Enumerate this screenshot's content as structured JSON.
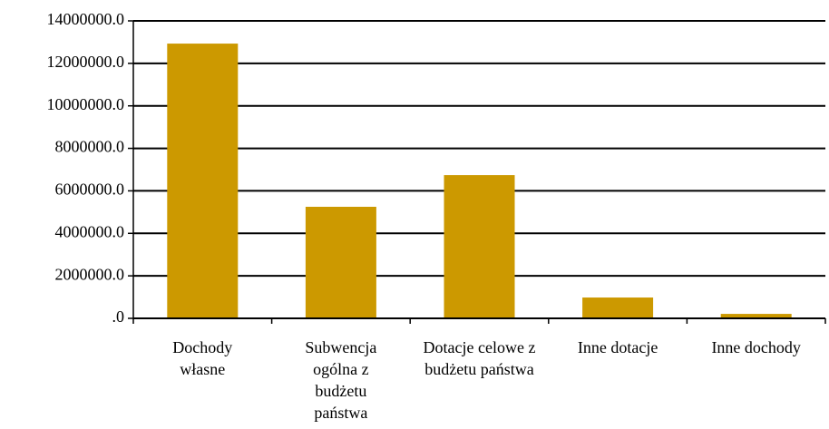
{
  "chart_data": {
    "type": "bar",
    "categories": [
      "Dochody własne",
      "Subwencja ogólna z budżetu państwa",
      "Dotacje celowe z budżetu państwa",
      "Inne dotacje",
      "Inne dochody"
    ],
    "values": [
      12930000,
      5250000,
      6740000,
      980000,
      210000
    ],
    "color": "#cc9900",
    "ylim": [
      0,
      14000000
    ],
    "yticks": [
      {
        "value": 0,
        "label": ".0"
      },
      {
        "value": 2000000,
        "label": "2000000.0"
      },
      {
        "value": 4000000,
        "label": "4000000.0"
      },
      {
        "value": 6000000,
        "label": "6000000.0"
      },
      {
        "value": 8000000,
        "label": "8000000.0"
      },
      {
        "value": 10000000,
        "label": "10000000.0"
      },
      {
        "value": 12000000,
        "label": "12000000.0"
      },
      {
        "value": 14000000,
        "label": "14000000.0"
      }
    ],
    "grid": true
  }
}
